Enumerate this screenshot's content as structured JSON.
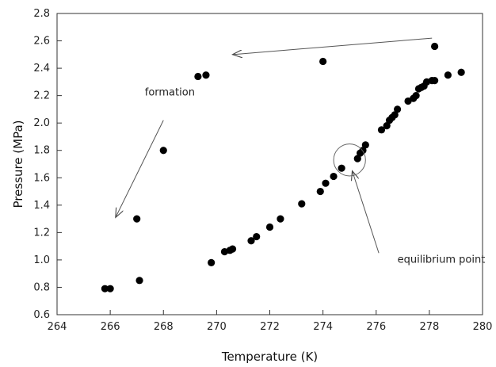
{
  "chart_data": {
    "type": "scatter",
    "xlabel": "Temperature (K)",
    "ylabel": "Pressure (MPa)",
    "xlim": [
      264,
      280
    ],
    "ylim": [
      0.6,
      2.8
    ],
    "x_ticks": [
      264,
      266,
      268,
      270,
      272,
      274,
      276,
      278,
      280
    ],
    "y_ticks": [
      0.6,
      0.8,
      1.0,
      1.2,
      1.4,
      1.6,
      1.8,
      2.0,
      2.2,
      2.4,
      2.6,
      2.8
    ],
    "x_tick_labels": [
      "264",
      "266",
      "268",
      "270",
      "272",
      "274",
      "276",
      "278",
      "280"
    ],
    "y_tick_labels": [
      "0.6",
      "0.8",
      "1.0",
      "1.2",
      "1.4",
      "1.6",
      "1.8",
      "2.0",
      "2.2",
      "2.4",
      "2.6",
      "2.8"
    ],
    "grid": false,
    "series": [
      {
        "color": "#000000",
        "points": [
          [
            265.8,
            0.79
          ],
          [
            266.0,
            0.79
          ],
          [
            267.0,
            1.3
          ],
          [
            267.1,
            0.85
          ],
          [
            268.0,
            1.8
          ],
          [
            269.3,
            2.34
          ],
          [
            269.6,
            2.35
          ],
          [
            269.8,
            0.98
          ],
          [
            270.3,
            1.06
          ],
          [
            270.5,
            1.07
          ],
          [
            270.6,
            1.08
          ],
          [
            271.3,
            1.14
          ],
          [
            271.5,
            1.17
          ],
          [
            272.0,
            1.24
          ],
          [
            272.4,
            1.3
          ],
          [
            273.2,
            1.41
          ],
          [
            273.9,
            1.5
          ],
          [
            274.0,
            2.45
          ],
          [
            274.1,
            1.56
          ],
          [
            274.4,
            1.61
          ],
          [
            274.7,
            1.67
          ],
          [
            275.3,
            1.74
          ],
          [
            275.4,
            1.78
          ],
          [
            275.5,
            1.8
          ],
          [
            275.6,
            1.84
          ],
          [
            276.2,
            1.95
          ],
          [
            276.4,
            1.98
          ],
          [
            276.5,
            2.02
          ],
          [
            276.6,
            2.04
          ],
          [
            276.7,
            2.06
          ],
          [
            276.8,
            2.1
          ],
          [
            277.2,
            2.16
          ],
          [
            277.4,
            2.18
          ],
          [
            277.5,
            2.2
          ],
          [
            277.6,
            2.25
          ],
          [
            277.7,
            2.26
          ],
          [
            277.8,
            2.27
          ],
          [
            277.9,
            2.3
          ],
          [
            278.1,
            2.31
          ],
          [
            278.2,
            2.56
          ],
          [
            278.2,
            2.31
          ],
          [
            278.7,
            2.35
          ],
          [
            279.2,
            2.37
          ]
        ]
      }
    ],
    "annotations": [
      {
        "text": "formation",
        "x": 267.3,
        "y": 2.2
      },
      {
        "text": "equilibrium point",
        "x": 276.8,
        "y": 0.98
      }
    ],
    "arrows": [
      {
        "from": [
          278.1,
          2.62
        ],
        "to": [
          270.6,
          2.5
        ]
      },
      {
        "from": [
          268.0,
          2.02
        ],
        "to": [
          266.2,
          1.31
        ]
      },
      {
        "from": [
          276.1,
          1.05
        ],
        "to": [
          275.1,
          1.65
        ]
      }
    ],
    "circle_marker": {
      "x": 275.0,
      "y": 1.73,
      "radius_units": 0.6
    }
  }
}
